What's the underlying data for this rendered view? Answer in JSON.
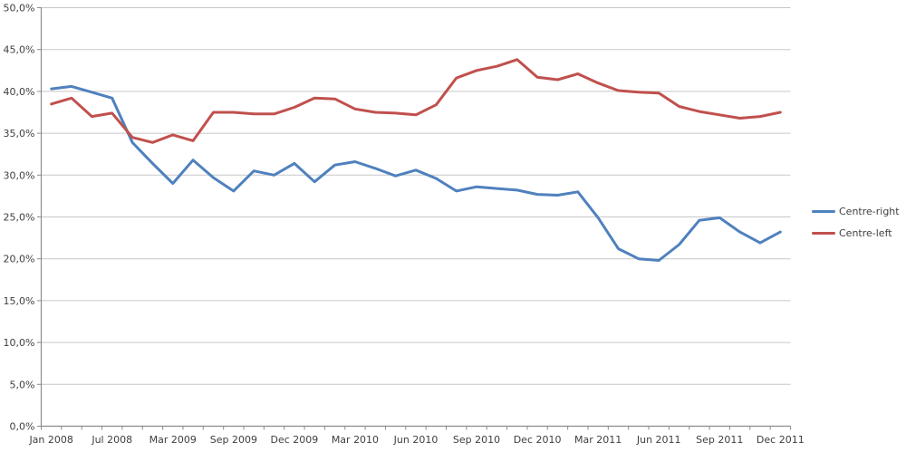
{
  "chart_data": {
    "type": "line",
    "title": "",
    "grid": true,
    "legend_position": "right",
    "x_axis": {
      "points_count": 37,
      "label_every_n_points": 3,
      "tick_labels": [
        "Jan 2008",
        "Jul 2008",
        "Mar 2009",
        "Sep 2009",
        "Dec 2009",
        "Mar 2010",
        "Jun 2010",
        "Sep 2010",
        "Dec 2010",
        "Mar 2011",
        "Jun 2011",
        "Sep 2011",
        "Dec 2011"
      ]
    },
    "y_axis": {
      "min": 0,
      "max": 50,
      "step": 5,
      "format": "percent-comma-decimal",
      "tick_labels": [
        "0,0%",
        "5,0%",
        "10,0%",
        "15,0%",
        "20,0%",
        "25,0%",
        "30,0%",
        "35,0%",
        "40,0%",
        "45,0%",
        "50,0%"
      ]
    },
    "series": [
      {
        "name": "Centre-right",
        "color": "#4F81BD",
        "values": [
          40.3,
          40.6,
          39.9,
          39.2,
          33.9,
          31.4,
          29.0,
          31.8,
          29.7,
          28.1,
          30.5,
          30.0,
          31.4,
          29.2,
          31.2,
          31.6,
          30.8,
          29.9,
          30.6,
          29.6,
          28.1,
          28.6,
          28.4,
          28.2,
          27.7,
          27.6,
          28.0,
          24.9,
          21.2,
          20.0,
          19.8,
          21.7,
          24.6,
          24.9,
          23.2,
          21.9,
          23.2
        ]
      },
      {
        "name": "Centre-left",
        "color": "#C0504D",
        "values": [
          38.5,
          39.2,
          37.0,
          37.4,
          34.5,
          33.9,
          34.8,
          34.1,
          37.5,
          37.5,
          37.3,
          37.3,
          38.1,
          39.2,
          39.1,
          37.9,
          37.5,
          37.4,
          37.2,
          38.4,
          41.6,
          42.5,
          43.0,
          43.8,
          41.7,
          41.4,
          42.1,
          41.0,
          40.1,
          39.9,
          39.8,
          38.2,
          37.6,
          37.2,
          36.8,
          37.0,
          37.5
        ]
      }
    ]
  },
  "colors": {
    "gridline": "#C7C7C7",
    "axis": "#8C8C8C",
    "text": "#3F3F3F",
    "background": "#FFFFFF"
  }
}
